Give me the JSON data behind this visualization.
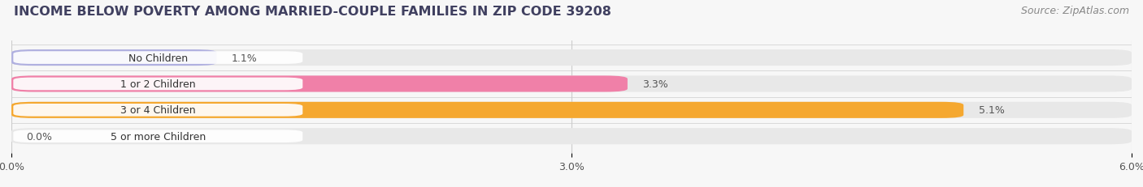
{
  "title": "INCOME BELOW POVERTY AMONG MARRIED-COUPLE FAMILIES IN ZIP CODE 39208",
  "source": "Source: ZipAtlas.com",
  "categories": [
    "No Children",
    "1 or 2 Children",
    "3 or 4 Children",
    "5 or more Children"
  ],
  "values": [
    1.1,
    3.3,
    5.1,
    0.0
  ],
  "bar_colors": [
    "#b0b0e0",
    "#f080a8",
    "#f5a830",
    "#f0a0a0"
  ],
  "bar_labels": [
    "1.1%",
    "3.3%",
    "5.1%",
    "0.0%"
  ],
  "xlim": [
    0,
    6.0
  ],
  "xticks": [
    0.0,
    3.0,
    6.0
  ],
  "xticklabels": [
    "0.0%",
    "3.0%",
    "6.0%"
  ],
  "background_color": "#f7f7f7",
  "bar_bg_color": "#e8e8e8",
  "title_fontsize": 11.5,
  "source_fontsize": 9,
  "label_fontsize": 9,
  "tick_fontsize": 9,
  "bar_height": 0.62,
  "bar_spacing": 1.0
}
